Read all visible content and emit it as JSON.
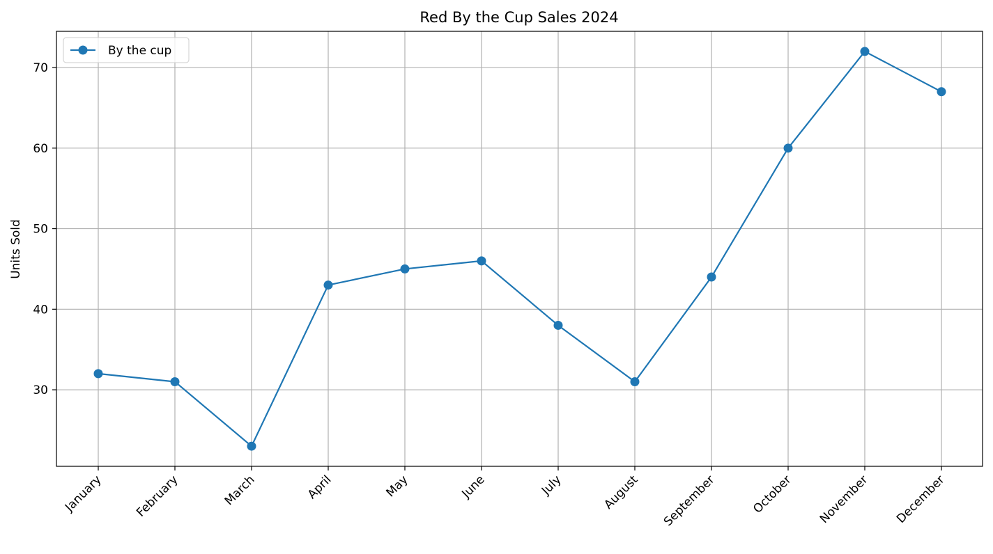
{
  "chart_data": {
    "type": "line",
    "title": "Red By the Cup Sales 2024",
    "xlabel": "",
    "ylabel": "Units Sold",
    "categories": [
      "January",
      "February",
      "March",
      "April",
      "May",
      "June",
      "July",
      "August",
      "September",
      "October",
      "November",
      "December"
    ],
    "series": [
      {
        "name": "By the cup",
        "values": [
          32,
          31,
          23,
          43,
          45,
          46,
          38,
          31,
          44,
          60,
          72,
          67
        ],
        "color": "#1f77b4",
        "marker": "circle"
      }
    ],
    "ylim": [
      20.5,
      74.5
    ],
    "yticks": [
      "30",
      "40",
      "50",
      "60",
      "70"
    ],
    "grid": true,
    "legend_position": "top-left",
    "xtick_rotation": 45
  }
}
